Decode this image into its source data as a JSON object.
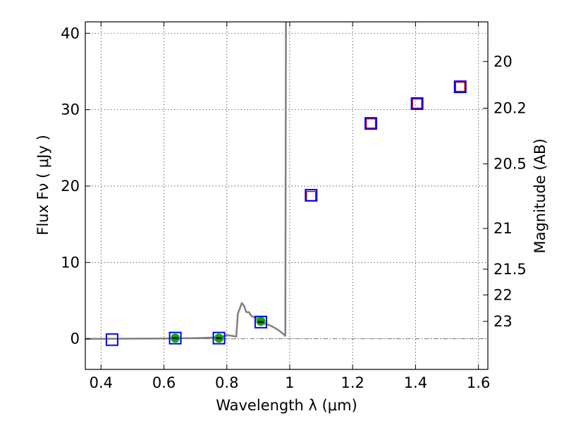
{
  "chart_data": {
    "type": "scatter",
    "xlabel": "Wavelength  λ (μm)",
    "ylabel": "Flux  Fν  ( μJy )",
    "ylabel_right": "Magnitude (AB)",
    "xlim": [
      0.35,
      1.63
    ],
    "ylim": [
      -4,
      41.5
    ],
    "grid": true,
    "x_ticks": [
      0.4,
      0.6,
      0.8,
      1.0,
      1.2,
      1.4,
      1.6
    ],
    "x_tick_labels": [
      "0.4",
      "0.6",
      "0.8",
      "1",
      "1.2",
      "1.4",
      "1.6"
    ],
    "y_ticks": [
      0,
      10,
      20,
      30,
      40
    ],
    "y_tick_labels": [
      "0",
      "10",
      "20",
      "30",
      "40"
    ],
    "mag_ticks": [
      20,
      20.2,
      20.5,
      21,
      21.5,
      22,
      23
    ],
    "mag_tick_labels": [
      "20",
      "20.2",
      "20.5",
      "21",
      "21.5",
      "22",
      "23"
    ],
    "series": [
      {
        "kind": "observed_photometry",
        "marker": "blue-open-square",
        "color": "#0000ff",
        "points": [
          {
            "x": 0.435,
            "y": -0.1
          },
          {
            "x": 0.636,
            "y": 0.1
          },
          {
            "x": 0.775,
            "y": 0.1
          },
          {
            "x": 0.908,
            "y": 2.2
          },
          {
            "x": 1.068,
            "y": 18.8
          },
          {
            "x": 1.258,
            "y": 28.2
          },
          {
            "x": 1.405,
            "y": 30.8
          },
          {
            "x": 1.542,
            "y": 33.0
          }
        ]
      },
      {
        "kind": "model_photometry_red",
        "marker": "red-open-square",
        "color": "#cc0000",
        "points": [
          {
            "x": 1.068,
            "y": 18.7
          },
          {
            "x": 1.258,
            "y": 28.2
          },
          {
            "x": 1.405,
            "y": 30.8
          },
          {
            "x": 1.542,
            "y": 33.0
          }
        ]
      },
      {
        "kind": "model_photometry_green",
        "marker": "green-filled-circle",
        "color": "#00b000",
        "points": [
          {
            "x": 0.636,
            "y": 0.1
          },
          {
            "x": 0.775,
            "y": 0.1
          },
          {
            "x": 0.908,
            "y": 2.3
          }
        ]
      },
      {
        "kind": "model_spectrum",
        "marker": "line",
        "color": "#808080",
        "points": [
          {
            "x": 0.35,
            "y": 0.0
          },
          {
            "x": 0.6,
            "y": 0.05
          },
          {
            "x": 0.7,
            "y": 0.1
          },
          {
            "x": 0.78,
            "y": 0.2
          },
          {
            "x": 0.8,
            "y": 0.5
          },
          {
            "x": 0.83,
            "y": 0.3
          },
          {
            "x": 0.835,
            "y": 3.3
          },
          {
            "x": 0.848,
            "y": 4.7
          },
          {
            "x": 0.855,
            "y": 4.3
          },
          {
            "x": 0.862,
            "y": 3.5
          },
          {
            "x": 0.87,
            "y": 3.5
          },
          {
            "x": 0.878,
            "y": 3.0
          },
          {
            "x": 0.89,
            "y": 2.8
          },
          {
            "x": 0.905,
            "y": 2.4
          },
          {
            "x": 0.92,
            "y": 2.0
          },
          {
            "x": 0.935,
            "y": 1.8
          },
          {
            "x": 0.95,
            "y": 1.5
          },
          {
            "x": 0.962,
            "y": 1.2
          },
          {
            "x": 0.975,
            "y": 0.8
          },
          {
            "x": 0.986,
            "y": 0.4
          },
          {
            "x": 0.988,
            "y": 41.5
          }
        ]
      }
    ],
    "error_bars": [
      {
        "x": 0.636,
        "y": 0.1
      },
      {
        "x": 0.775,
        "y": 0.1
      },
      {
        "x": 0.908,
        "y": 2.2
      }
    ]
  }
}
